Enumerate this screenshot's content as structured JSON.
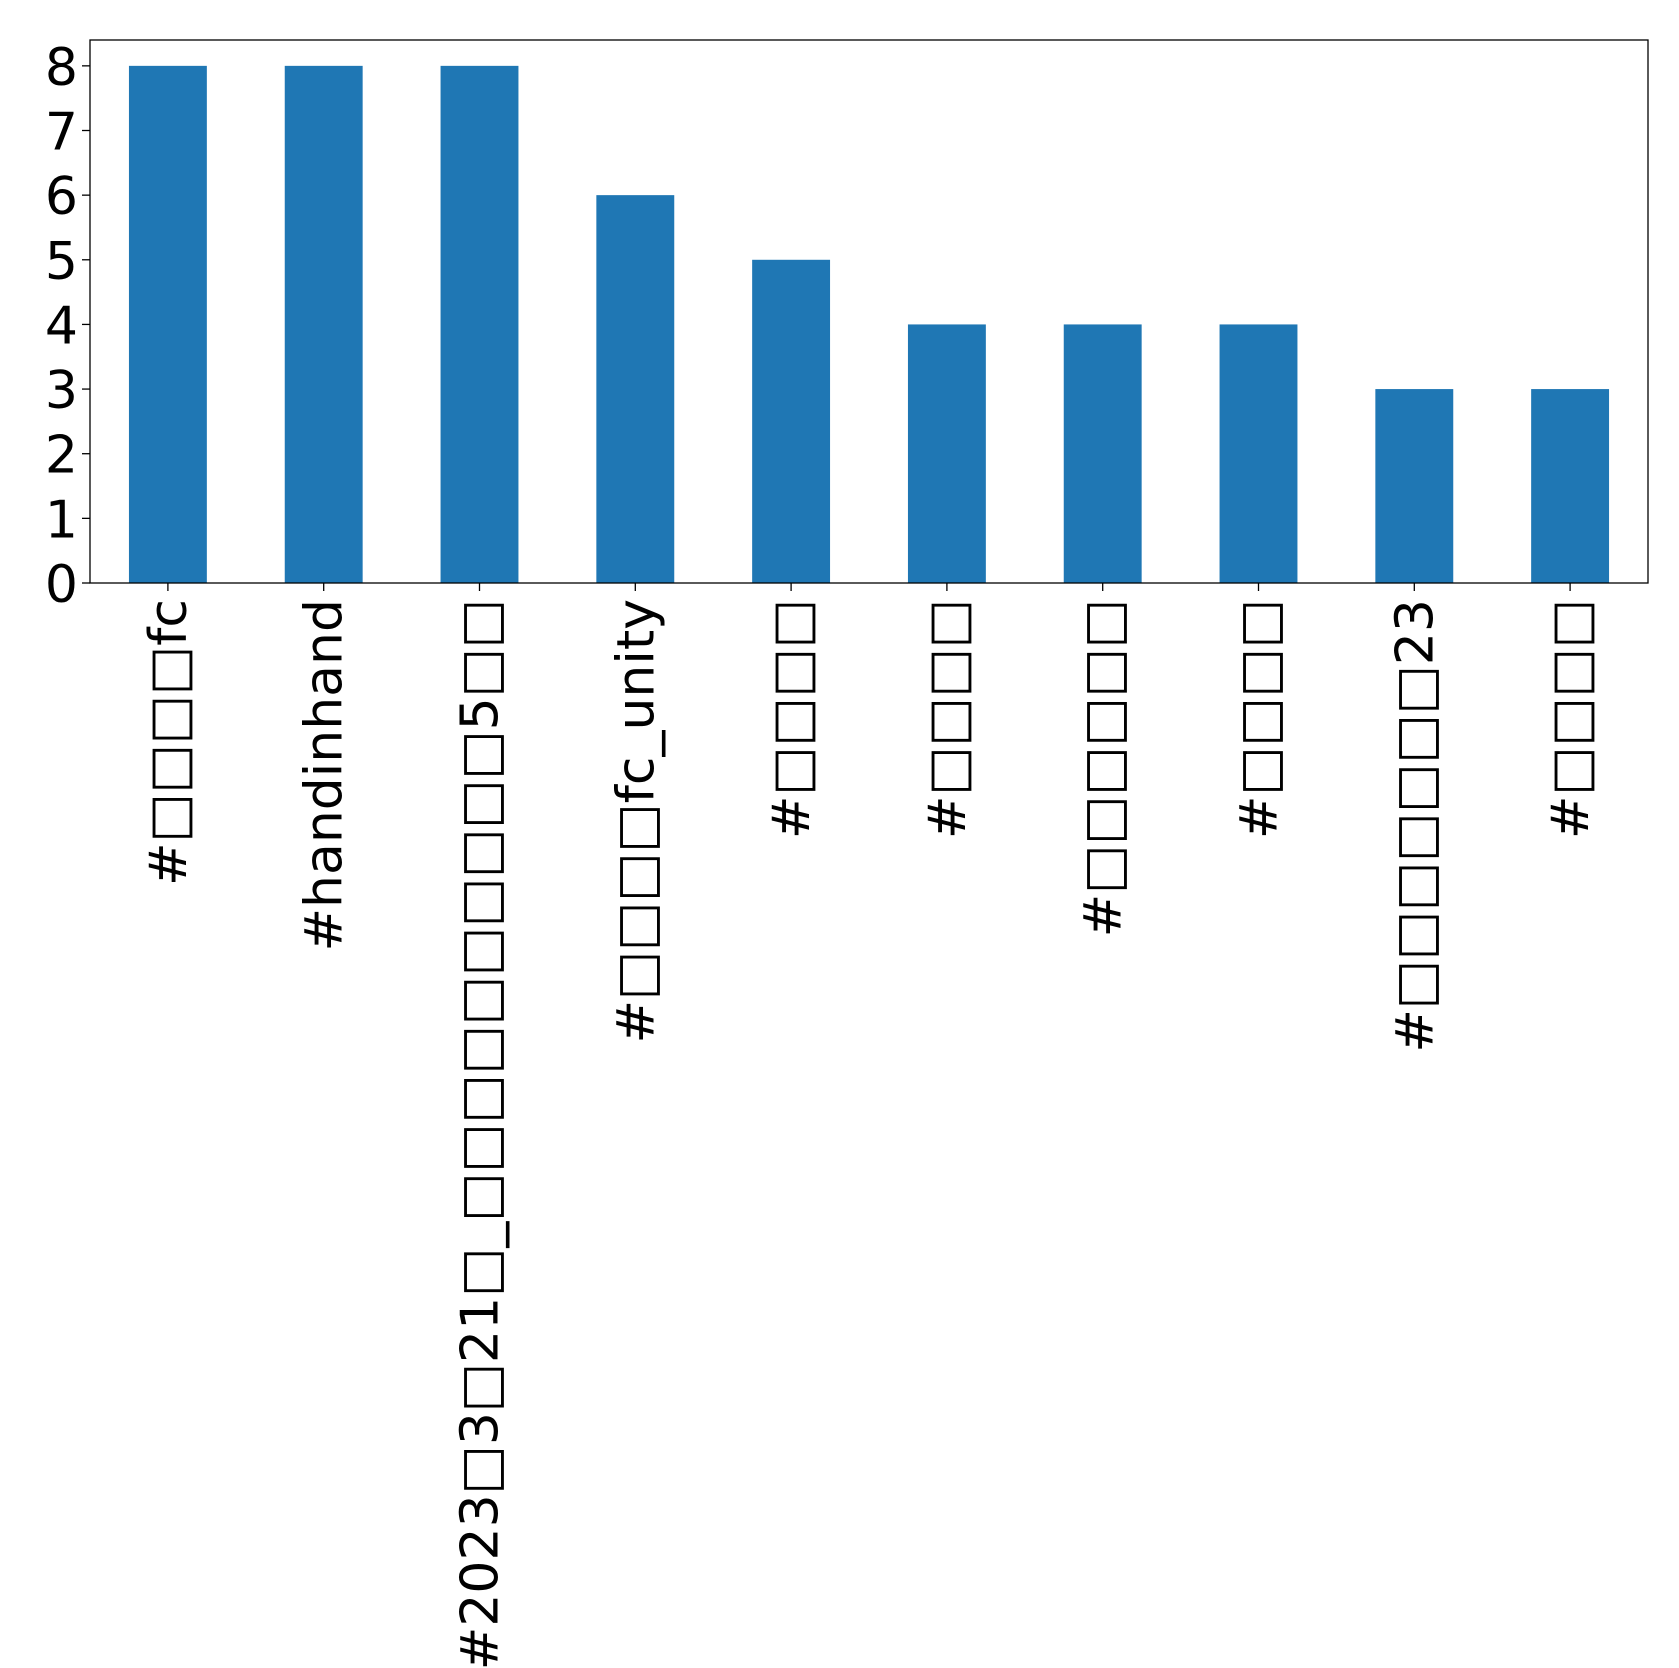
{
  "chart_data": {
    "type": "bar",
    "title": "",
    "xlabel": "",
    "ylabel": "",
    "categories": [
      "#□□□□fc",
      "#handinhand",
      "#2023□3□21□_□□□□□□□□□□5□□",
      "#□□□□fc_unity",
      "#□□□□",
      "#□□□□",
      "#□□□□□□",
      "#□□□□",
      "#□□□□□□□23",
      "#□□□□"
    ],
    "values": [
      8,
      8,
      8,
      6,
      5,
      4,
      4,
      4,
      3,
      3
    ],
    "ylim": [
      0,
      8.4
    ],
    "yticks": [
      0,
      1,
      2,
      3,
      4,
      5,
      6,
      7,
      8
    ],
    "grid": false,
    "legend": "none",
    "bar_color": "#1f77b4"
  }
}
